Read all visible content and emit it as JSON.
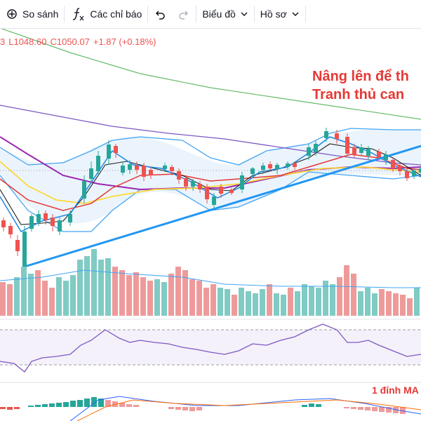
{
  "toolbar": {
    "compare": "So sánh",
    "indicators": "Các chỉ báo",
    "chart": "Biểu đồ",
    "profile": "Hồ sơ"
  },
  "legend": {
    "fragment": "3",
    "low": "L1048.60",
    "close": "C1050.07",
    "change": "+1.87 (+0.18%)"
  },
  "annotation": {
    "lines": [
      "Nâng lên để th",
      "Tranh thủ can"
    ]
  },
  "macd_annotation": "1 đỉnh MA"
}
